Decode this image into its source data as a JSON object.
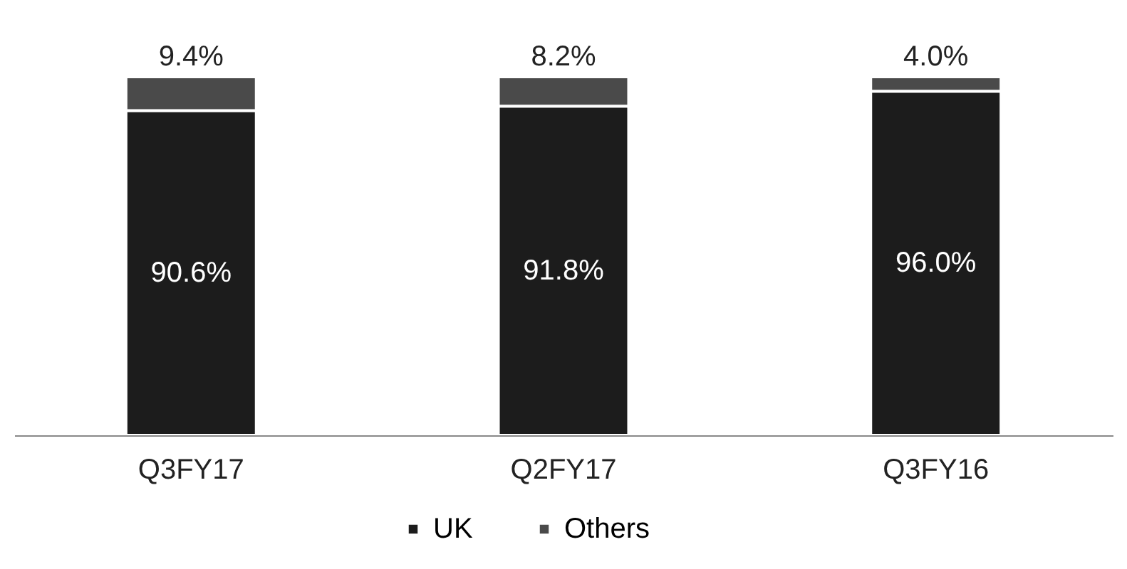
{
  "chart_data": {
    "type": "bar",
    "stacked": true,
    "categories": [
      "Q3FY17",
      "Q2FY17",
      "Q3FY16"
    ],
    "series": [
      {
        "name": "UK",
        "color": "#1c1c1c",
        "values": [
          90.6,
          91.8,
          96.0
        ],
        "value_labels": [
          "90.6%",
          "91.8%",
          "96.0%"
        ]
      },
      {
        "name": "Others",
        "color": "#4a4a4a",
        "values": [
          9.4,
          8.2,
          4.0
        ],
        "value_labels": [
          "9.4%",
          "8.2%",
          "4.0%"
        ]
      }
    ],
    "legend": "bottom"
  }
}
